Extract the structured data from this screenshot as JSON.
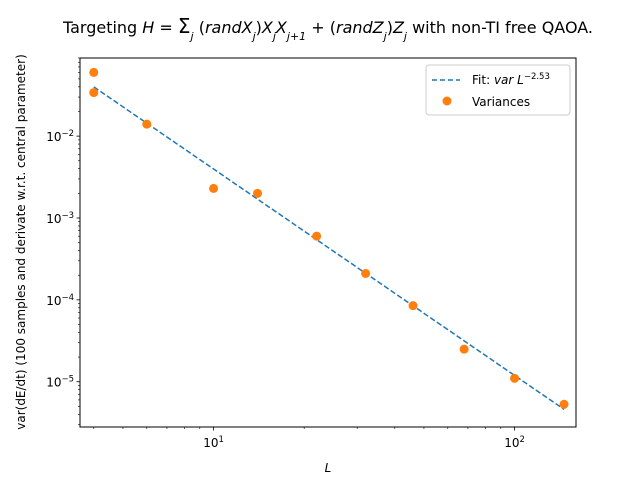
{
  "chart_data": {
    "type": "scatter",
    "title": "Targeting H = Σj (randXj) Xj Xj+1 + (randZj) Zj with non-TI free QAOA.",
    "xlabel": "L",
    "ylabel": "var(dE/dt) (100 samples and derivate w.r.t. central parameter)",
    "xscale": "log",
    "yscale": "log",
    "xlim": [
      3.6,
      160
    ],
    "ylim": [
      2.8e-06,
      0.09
    ],
    "grid": false,
    "legend_position": "top-right",
    "x_ticks": [
      {
        "value": 10,
        "base": "10",
        "exp": "1"
      },
      {
        "value": 100,
        "base": "10",
        "exp": "2"
      }
    ],
    "y_ticks": [
      {
        "value": 1e-05,
        "base": "10",
        "exp": "−5"
      },
      {
        "value": 0.0001,
        "base": "10",
        "exp": "−4"
      },
      {
        "value": 0.001,
        "base": "10",
        "exp": "−3"
      },
      {
        "value": 0.01,
        "base": "10",
        "exp": "−2"
      }
    ],
    "series": [
      {
        "name": "Variances",
        "kind": "scatter",
        "color": "#ff7f0e",
        "points": [
          {
            "x": 4,
            "y": 0.06
          },
          {
            "x": 4,
            "y": 0.034
          },
          {
            "x": 6,
            "y": 0.014
          },
          {
            "x": 10,
            "y": 0.0023
          },
          {
            "x": 14,
            "y": 0.002
          },
          {
            "x": 22,
            "y": 0.0006
          },
          {
            "x": 32,
            "y": 0.00021
          },
          {
            "x": 46,
            "y": 8.5e-05
          },
          {
            "x": 68,
            "y": 2.5e-05
          },
          {
            "x": 100,
            "y": 1.1e-05
          },
          {
            "x": 146,
            "y": 5.3e-06
          }
        ]
      },
      {
        "name": "Fit: var L^-2.53",
        "kind": "line",
        "style": "dashed",
        "color": "#1f77b4",
        "exponent": -2.53,
        "points": [
          {
            "x": 4,
            "y": 0.04
          },
          {
            "x": 146,
            "y": 4.6e-06
          }
        ]
      }
    ]
  }
}
